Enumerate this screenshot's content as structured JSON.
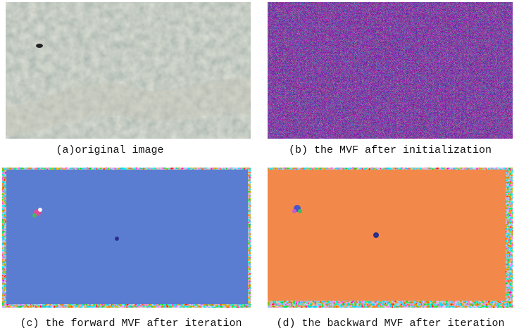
{
  "figure": {
    "panels": [
      {
        "caption": "(a)original image"
      },
      {
        "caption": "(b) the MVF after initialization"
      },
      {
        "caption": "(c) the forward MVF after iteration"
      },
      {
        "caption": "(d) the backward MVF after iteration"
      }
    ]
  }
}
